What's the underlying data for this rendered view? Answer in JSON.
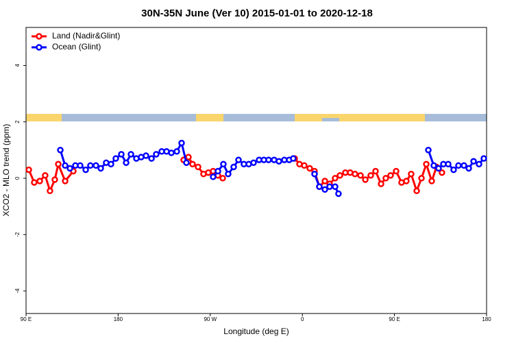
{
  "chart_data": {
    "type": "line",
    "title": "30N-35N June (Ver 10)   2015-01-01 to 2020-12-18",
    "x_label": "Longitude (deg E)",
    "y_label": "XCO2 - MLO trend (ppm)",
    "xlim": [
      90,
      540
    ],
    "ylim": [
      -4.8,
      5.35
    ],
    "xticks": [
      {
        "value": 90,
        "label": "90 E"
      },
      180,
      {
        "value": 270,
        "label": "90 W"
      },
      {
        "value": 360,
        "label": "0"
      },
      {
        "value": 450,
        "label": "90 E"
      },
      {
        "value": 540,
        "label": "180"
      }
    ],
    "yticks": [
      -4,
      -2,
      0,
      2,
      4
    ],
    "legend": "top-left",
    "series": [
      {
        "name": "Land (Nadir&Glint)",
        "color": "#ff0000",
        "x": [
          92.7,
          98.0,
          103.4,
          108.7,
          113.4,
          118.1,
          121.5,
          128.2,
          136.2,
          null,
          244.0,
          248.7,
          252.7,
          258.1,
          263.4,
          268.1,
          272.8,
          277.5,
          282.2,
          null,
          352.5,
          357.2,
          361.9,
          367.2,
          371.9,
          376.6,
          382.0,
          386.6,
          392.0,
          396.7,
          402.0,
          406.7,
          411.4,
          416.8,
          421.5,
          426.8,
          431.5,
          436.9,
          441.5,
          446.2,
          451.6,
          456.9,
          461.6,
          466.3,
          471.7,
          476.4,
          481.1,
          486.4,
          491.1,
          496.4
        ],
        "values": [
          0.3,
          -0.15,
          -0.1,
          0.1,
          -0.45,
          -0.05,
          0.5,
          -0.1,
          0.25,
          null,
          0.65,
          0.75,
          0.5,
          0.4,
          0.15,
          0.2,
          0.25,
          0.1,
          0.0,
          null,
          0.7,
          0.5,
          0.45,
          0.35,
          0.25,
          -0.3,
          -0.1,
          -0.2,
          0.0,
          0.1,
          0.2,
          0.2,
          0.15,
          0.1,
          -0.05,
          0.1,
          0.25,
          -0.2,
          0.0,
          0.1,
          0.25,
          -0.15,
          -0.1,
          0.15,
          -0.45,
          0.0,
          0.5,
          -0.1,
          0.4,
          0.2
        ]
      },
      {
        "name": "Ocean (Glint)",
        "color": "#0000ff",
        "x": [
          123.5,
          128.2,
          132.9,
          138.2,
          142.9,
          148.3,
          152.9,
          158.3,
          163.0,
          168.3,
          173.0,
          177.7,
          183.1,
          187.8,
          192.5,
          197.8,
          202.5,
          207.2,
          212.6,
          217.2,
          222.6,
          227.3,
          232.0,
          237.3,
          242.0,
          246.7,
          null,
          272.8,
          277.5,
          282.8,
          287.5,
          292.9,
          297.6,
          302.9,
          307.6,
          312.3,
          317.7,
          322.4,
          327.0,
          332.4,
          337.1,
          342.4,
          347.1,
          351.1,
          null,
          371.9,
          376.6,
          382.0,
          386.6,
          392.0,
          395.3,
          null,
          483.1,
          488.4,
          493.1,
          497.8,
          502.5,
          507.8,
          512.5,
          517.9,
          522.6,
          527.3,
          532.6,
          537.3
        ],
        "values": [
          1.0,
          0.45,
          0.35,
          0.45,
          0.45,
          0.3,
          0.45,
          0.45,
          0.35,
          0.55,
          0.5,
          0.7,
          0.85,
          0.55,
          0.85,
          0.7,
          0.75,
          0.8,
          0.7,
          0.85,
          0.95,
          0.95,
          0.9,
          0.95,
          1.25,
          0.55,
          null,
          0.05,
          0.25,
          0.5,
          0.15,
          0.4,
          0.65,
          0.5,
          0.5,
          0.55,
          0.65,
          0.65,
          0.65,
          0.65,
          0.6,
          0.65,
          0.65,
          0.7,
          null,
          0.15,
          -0.3,
          -0.4,
          -0.3,
          -0.3,
          -0.55,
          null,
          1.0,
          0.45,
          0.35,
          0.5,
          0.5,
          0.3,
          0.45,
          0.45,
          0.35,
          0.6,
          0.5,
          0.7
        ]
      }
    ]
  }
}
